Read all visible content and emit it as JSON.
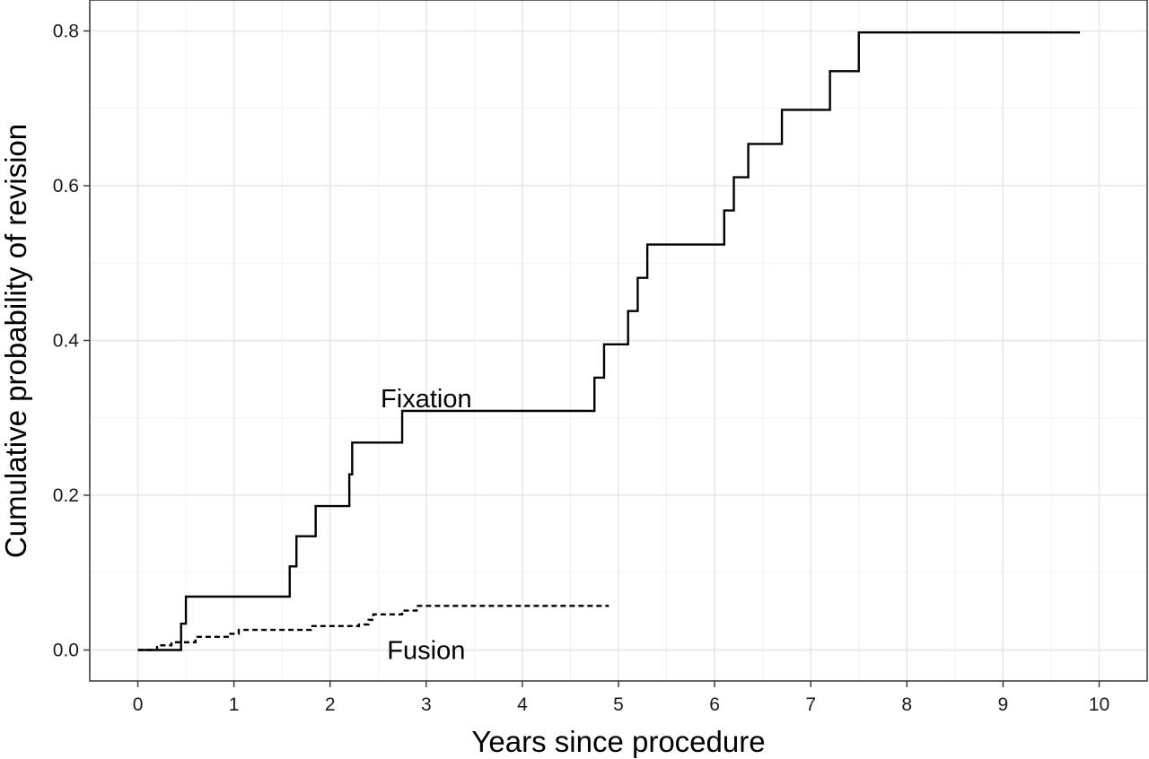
{
  "chart_data": {
    "type": "line",
    "step": true,
    "title": "",
    "xlabel": "Years since procedure",
    "ylabel": "Cumulative probability of revision",
    "xlim": [
      -0.5,
      10.5
    ],
    "ylim": [
      -0.04,
      0.84
    ],
    "x_ticks": [
      "0",
      "1",
      "2",
      "3",
      "4",
      "5",
      "6",
      "7",
      "8",
      "9",
      "10"
    ],
    "y_ticks": [
      "0.0",
      "0.2",
      "0.4",
      "0.6",
      "0.8"
    ],
    "grid": true,
    "legend": "none",
    "series": [
      {
        "name": "Fixation",
        "line_style": "solid",
        "color": "#000000",
        "x": [
          0,
          0.45,
          0.5,
          1.58,
          1.65,
          1.85,
          2.2,
          2.23,
          2.75,
          4.75,
          4.85,
          5.1,
          5.2,
          5.3,
          6.1,
          6.2,
          6.35,
          6.7,
          7.2,
          7.5,
          9.8
        ],
        "y": [
          0,
          0.034,
          0.069,
          0.108,
          0.147,
          0.186,
          0.227,
          0.268,
          0.309,
          0.352,
          0.395,
          0.438,
          0.481,
          0.524,
          0.568,
          0.611,
          0.654,
          0.698,
          0.748,
          0.798,
          0.798
        ]
      },
      {
        "name": "Fusion",
        "line_style": "dashed",
        "color": "#000000",
        "x": [
          0,
          0.2,
          0.35,
          0.6,
          0.95,
          1.05,
          1.8,
          2.3,
          2.4,
          2.45,
          2.75,
          2.9,
          4.9
        ],
        "y": [
          0,
          0.006,
          0.01,
          0.017,
          0.021,
          0.026,
          0.031,
          0.033,
          0.039,
          0.046,
          0.051,
          0.057,
          0.057
        ]
      }
    ],
    "annotations": [
      {
        "text": "Fixation",
        "x": 3.0,
        "y": 0.325
      },
      {
        "text": "Fusion",
        "x": 3.0,
        "y": 0.0
      }
    ]
  }
}
